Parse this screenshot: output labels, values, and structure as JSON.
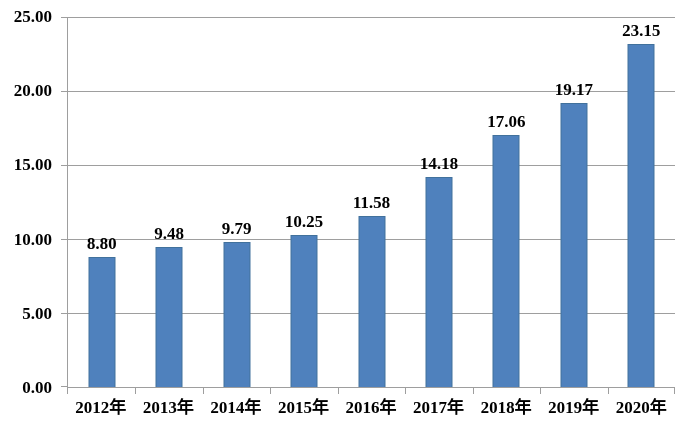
{
  "chart_data": {
    "type": "bar",
    "categories": [
      "2012年",
      "2013年",
      "2014年",
      "2015年",
      "2016年",
      "2017年",
      "2018年",
      "2019年",
      "2020年"
    ],
    "values": [
      8.8,
      9.48,
      9.79,
      10.25,
      11.58,
      14.18,
      17.06,
      19.17,
      23.15
    ],
    "value_labels": [
      "8.80",
      "9.48",
      "9.79",
      "10.25",
      "11.58",
      "14.18",
      "17.06",
      "19.17",
      "23.15"
    ],
    "ylim": [
      0,
      25
    ],
    "ytick_interval": 5,
    "ytick_labels": [
      "0.00",
      "5.00",
      "10.00",
      "15.00",
      "20.00",
      "25.00"
    ],
    "grid": true,
    "legend_position": "none",
    "colors": {
      "bar_fill": "#4F81BD",
      "bar_border": "#41719C",
      "gridline": "#9E9E9E",
      "axis": "#9E9E9E",
      "text": "#000000",
      "background": "#FFFFFF"
    }
  }
}
